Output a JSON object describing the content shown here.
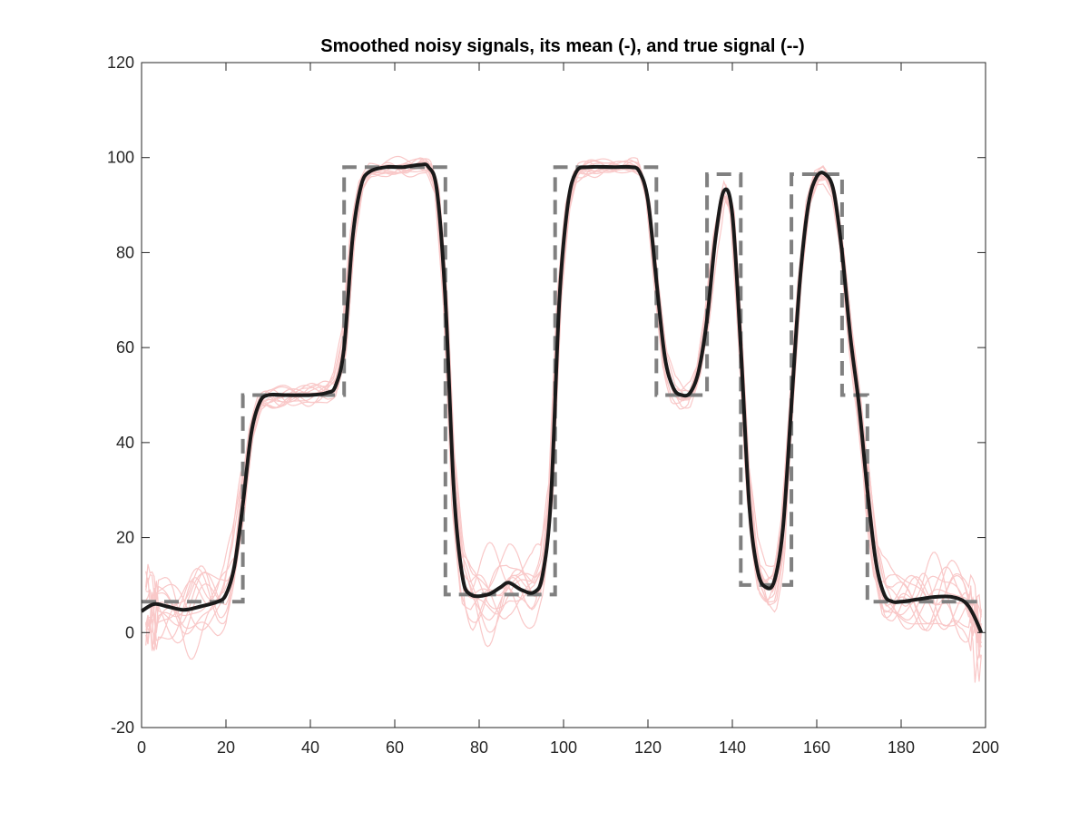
{
  "chart_data": {
    "type": "line",
    "title": "Smoothed noisy signals, its mean (-), and true signal (--)",
    "xlabel": "",
    "ylabel": "",
    "xlim": [
      0,
      200
    ],
    "ylim": [
      -20,
      120
    ],
    "x_ticks": [
      "0",
      "20",
      "40",
      "60",
      "80",
      "100",
      "120",
      "140",
      "160",
      "180",
      "200"
    ],
    "y_ticks": [
      "-20",
      "0",
      "20",
      "40",
      "60",
      "80",
      "100",
      "120"
    ],
    "grid": false,
    "legend": "none",
    "colors": {
      "mean": "#1a1a1a",
      "true_signal": "#808080",
      "noisy": "#f9c8c8",
      "axes": "#262626"
    },
    "series": [
      {
        "role": "true_signal",
        "style": "dashed",
        "x": [
          0,
          24,
          24,
          48,
          48,
          72,
          72,
          98,
          98,
          122,
          122,
          134,
          134,
          142,
          142,
          154,
          154,
          166,
          166,
          172,
          172,
          198
        ],
        "values": [
          6.5,
          6.5,
          50,
          50,
          98,
          98,
          8,
          8,
          98,
          98,
          50,
          50,
          96.5,
          96.5,
          10,
          10,
          96.5,
          96.5,
          50,
          50,
          6.5,
          6.5
        ]
      },
      {
        "role": "mean",
        "style": "solid",
        "x": [
          0,
          3,
          6,
          10,
          14,
          18,
          20,
          22,
          24,
          26,
          28,
          30,
          34,
          40,
          44,
          46,
          48,
          50,
          52,
          54,
          58,
          62,
          66,
          68,
          70,
          72,
          74,
          76,
          78,
          82,
          85,
          87,
          90,
          93,
          95,
          97,
          99,
          101,
          103,
          106,
          112,
          116,
          118,
          120,
          122,
          124,
          126,
          128,
          130,
          132,
          134,
          136,
          138,
          140,
          142,
          144,
          146,
          148,
          150,
          152,
          154,
          156,
          158,
          160,
          162,
          164,
          166,
          168,
          170,
          172,
          174,
          176,
          178,
          180,
          184,
          188,
          192,
          195,
          197,
          199
        ],
        "values": [
          4.5,
          6,
          5.5,
          4.8,
          5.5,
          6.5,
          8,
          14,
          27,
          42,
          48.5,
          50,
          50,
          50,
          50.5,
          52,
          60,
          83,
          94,
          97,
          98,
          98,
          98.5,
          98,
          93,
          70,
          30,
          12,
          8,
          8,
          9.5,
          10.5,
          9,
          8.5,
          12,
          28,
          70,
          90,
          97,
          98,
          98,
          98,
          97,
          91,
          74,
          58,
          51.5,
          50,
          50.5,
          55,
          66,
          83,
          93,
          88,
          60,
          27,
          13,
          9.5,
          11,
          22,
          48,
          74,
          90,
          96,
          96.5,
          93,
          80,
          62,
          48,
          30,
          15,
          8,
          6.5,
          6.5,
          7,
          7.5,
          7.5,
          6.5,
          4,
          0
        ]
      }
    ],
    "noisy_series_count": 12
  }
}
